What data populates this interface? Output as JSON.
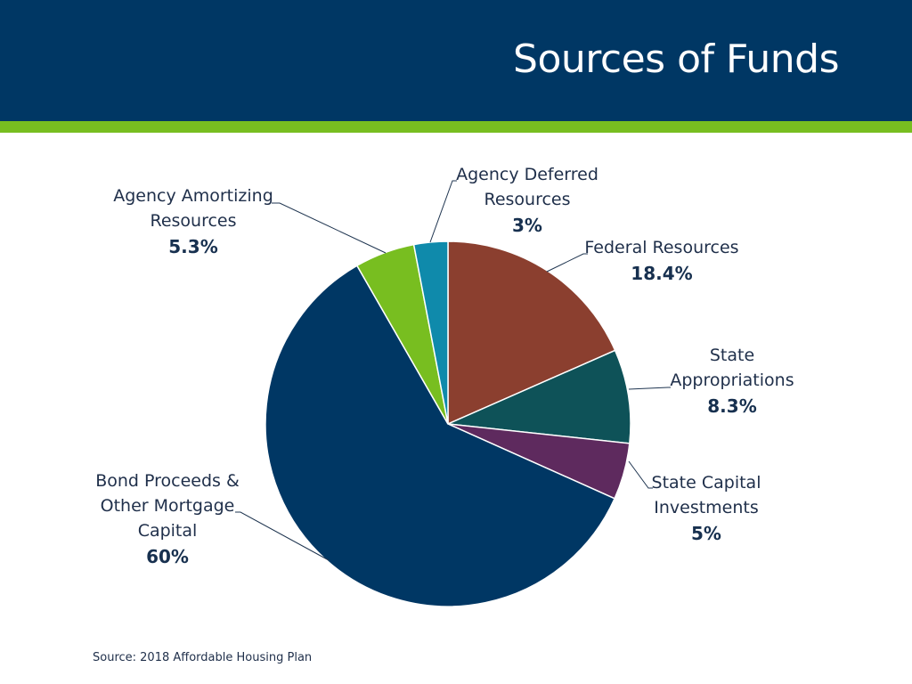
{
  "header": {
    "title": "Sources of Funds"
  },
  "colors": {
    "header_bg": "#003764",
    "accent_bar": "#78be20"
  },
  "chart_data": {
    "type": "pie",
    "title": "Sources of Funds",
    "slices": [
      {
        "name": "Federal Resources",
        "value": 18.4,
        "label": "18.4%",
        "color": "#8b3f2f"
      },
      {
        "name": "State Appropriations",
        "value": 8.3,
        "label": "8.3%",
        "color": "#0e5258"
      },
      {
        "name": "State Capital Investments",
        "value": 5,
        "label": "5%",
        "color": "#5e2a5e"
      },
      {
        "name": "Bond Proceeds & Other Mortgage Capital",
        "value": 60,
        "label": "60%",
        "color": "#003764"
      },
      {
        "name": "Agency Amortizing Resources",
        "value": 5.3,
        "label": "5.3%",
        "color": "#78be20"
      },
      {
        "name": "Agency Deferred Resources",
        "value": 3,
        "label": "3%",
        "color": "#0f8aab"
      }
    ]
  },
  "labels": {
    "federal": {
      "line1": "Federal Resources",
      "pct": "18.4%"
    },
    "state_appropriations": {
      "line1": "State",
      "line2": "Appropriations",
      "pct": "8.3%"
    },
    "state_capital": {
      "line1": "State Capital",
      "line2": "Investments",
      "pct": "5%"
    },
    "bond": {
      "line1": "Bond Proceeds &",
      "line2": "Other Mortgage",
      "line3": "Capital",
      "pct": "60%"
    },
    "agency_amortizing": {
      "line1": "Agency Amortizing",
      "line2": "Resources",
      "pct": "5.3%"
    },
    "agency_deferred": {
      "line1": "Agency Deferred",
      "line2": "Resources",
      "pct": "3%"
    }
  },
  "source": "Source: 2018 Affordable Housing Plan"
}
